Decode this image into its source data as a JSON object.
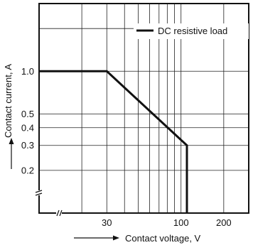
{
  "chart_data": {
    "type": "line",
    "title": "",
    "xlabel": "Contact voltage, V",
    "ylabel": "Contact current, A",
    "x_scale": "log",
    "y_scale": "log",
    "xlim": [
      10,
      300
    ],
    "ylim": [
      0.1,
      3
    ],
    "x_ticks": [
      {
        "value": 30,
        "label": "30"
      },
      {
        "value": 100,
        "label": "100"
      },
      {
        "value": 200,
        "label": "200"
      }
    ],
    "y_ticks": [
      {
        "value": 1.0,
        "label": "1.0"
      },
      {
        "value": 0.5,
        "label": "0.5"
      },
      {
        "value": 0.4,
        "label": "0.4"
      },
      {
        "value": 0.3,
        "label": "0.3"
      },
      {
        "value": 0.2,
        "label": "0.2"
      }
    ],
    "grid": true,
    "legend": "top-right",
    "series": [
      {
        "name": "DC resistive load",
        "x": [
          10,
          30,
          110,
          110
        ],
        "y": [
          1.0,
          1.0,
          0.3,
          0.1
        ]
      }
    ]
  }
}
